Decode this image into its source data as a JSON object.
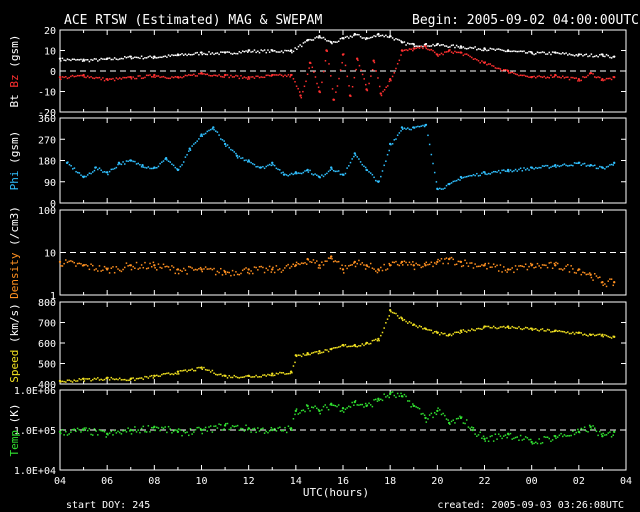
{
  "header": {
    "title": "ACE RTSW (Estimated) MAG & SWEPAM",
    "begin": "Begin: 2005-09-02 04:00:00UTC"
  },
  "footer": {
    "start_doy": "start DOY: 245",
    "created": "created: 2005-09-03 03:26:08UTC"
  },
  "x_axis": {
    "label": "UTC(hours)",
    "range_hours": [
      4,
      28
    ],
    "ticks": [
      "04",
      "06",
      "08",
      "10",
      "12",
      "14",
      "16",
      "18",
      "20",
      "22",
      "00",
      "02",
      "04"
    ]
  },
  "chart_data": [
    {
      "type": "scatter",
      "panel": "mag",
      "ylabel_parts": [
        "Bt",
        "Bz",
        "(gsm)"
      ],
      "ylabel_colors": [
        "#ffffff",
        "#ff3030",
        "#ffffff"
      ],
      "ylim": [
        -20,
        20
      ],
      "yticks": [
        "20",
        "10",
        "0",
        "-10",
        "-20"
      ],
      "ytick_values": [
        20,
        10,
        0,
        -10,
        -20
      ],
      "dashed_ref": 0,
      "series": [
        {
          "name": "Bt",
          "color": "#ffffff",
          "x": [
            4,
            5,
            6,
            7,
            8,
            9,
            10,
            11,
            12,
            13,
            13.8,
            14.5,
            15,
            15.5,
            16,
            16.5,
            17,
            17.5,
            18,
            18.5,
            19,
            19.5,
            20,
            21,
            22,
            23,
            24,
            25,
            26,
            27,
            27.5
          ],
          "y": [
            6,
            5.5,
            6,
            7,
            7,
            8,
            9,
            9,
            10,
            10,
            10,
            15,
            17,
            14,
            16,
            18,
            16,
            18,
            17,
            14,
            13,
            13,
            13,
            12,
            11,
            10,
            9,
            9,
            8,
            8,
            7
          ]
        },
        {
          "name": "Bz",
          "color": "#ff3030",
          "x": [
            4,
            5,
            6,
            7,
            8,
            9,
            10,
            11,
            12,
            13,
            13.8,
            14.2,
            14.6,
            15,
            15.3,
            15.6,
            16,
            16.3,
            16.6,
            17,
            17.3,
            17.6,
            18,
            18.5,
            19,
            19.5,
            20,
            20.5,
            21,
            22,
            23,
            24,
            25,
            26,
            26.5,
            27,
            27.5
          ],
          "y": [
            -3,
            -2,
            -4,
            -3,
            -2,
            -3,
            -1,
            -2,
            -3,
            -2,
            -2,
            -12,
            4,
            -10,
            10,
            -14,
            8,
            -12,
            6,
            -9,
            5,
            -11,
            -4,
            10,
            11,
            12,
            8,
            10,
            9,
            4,
            0,
            -3,
            -2,
            -4,
            -1,
            -4,
            -3
          ]
        }
      ]
    },
    {
      "type": "scatter",
      "panel": "phi",
      "ylabel_parts": [
        "Phi",
        "(gsm)"
      ],
      "ylabel_colors": [
        "#30c0ff",
        "#ffffff"
      ],
      "ylim": [
        0,
        360
      ],
      "yticks": [
        "360",
        "270",
        "180",
        "90",
        "0"
      ],
      "ytick_values": [
        360,
        270,
        180,
        90,
        0
      ],
      "series": [
        {
          "name": "Phi",
          "color": "#30c0ff",
          "x": [
            4.3,
            5,
            5.5,
            6,
            6.5,
            7,
            7.5,
            8,
            8.5,
            9,
            9.5,
            10,
            10.5,
            11,
            11.5,
            12,
            12.5,
            13,
            13.5,
            14,
            14.5,
            15,
            15.5,
            16,
            16.5,
            17,
            17.5,
            18,
            18.5,
            19,
            19.5,
            20,
            20.5,
            21,
            22,
            23,
            24,
            25,
            26,
            26.5,
            27,
            27.5
          ],
          "y": [
            170,
            110,
            150,
            130,
            170,
            180,
            160,
            150,
            190,
            140,
            230,
            290,
            320,
            250,
            200,
            180,
            150,
            170,
            120,
            130,
            140,
            110,
            150,
            120,
            210,
            140,
            90,
            250,
            320,
            320,
            330,
            60,
            80,
            110,
            130,
            140,
            150,
            160,
            170,
            160,
            150,
            170
          ]
        }
      ]
    },
    {
      "type": "scatter",
      "panel": "density",
      "scale": "log",
      "ylabel_parts": [
        "Density",
        "(/cm3)"
      ],
      "ylabel_colors": [
        "#ff9020",
        "#ffffff"
      ],
      "ylim": [
        1,
        100
      ],
      "yticks": [
        "100",
        "10",
        "1"
      ],
      "ytick_values": [
        100,
        10,
        1
      ],
      "dashed_ref": 10,
      "series": [
        {
          "name": "Density",
          "color": "#ff9020",
          "x": [
            4,
            5,
            6,
            7,
            8,
            9,
            10,
            11,
            12,
            13,
            14,
            14.5,
            15,
            15.5,
            16,
            16.5,
            17,
            17.5,
            18,
            18.5,
            19,
            19.5,
            20,
            20.5,
            21,
            22,
            23,
            24,
            25,
            26,
            26.5,
            27,
            27.5
          ],
          "y": [
            6,
            5,
            4,
            5,
            5,
            4,
            4,
            3.5,
            4,
            4,
            5,
            7,
            5,
            8,
            4,
            6,
            5,
            4,
            5,
            6,
            5,
            5,
            6,
            7,
            6,
            5,
            4,
            5,
            5,
            4,
            3,
            2,
            2
          ]
        }
      ]
    },
    {
      "type": "scatter",
      "panel": "speed",
      "ylabel_parts": [
        "Speed",
        "(km/s)"
      ],
      "ylabel_colors": [
        "#f0e020",
        "#ffffff"
      ],
      "ylim": [
        400,
        800
      ],
      "yticks": [
        "800",
        "700",
        "600",
        "500",
        "400"
      ],
      "ytick_values": [
        800,
        700,
        600,
        500,
        400
      ],
      "series": [
        {
          "name": "Speed",
          "color": "#f0e020",
          "x": [
            4,
            5,
            6,
            7,
            8,
            9,
            10,
            11,
            12,
            13,
            13.8,
            14,
            14.5,
            15,
            15.5,
            16,
            16.5,
            17,
            17.5,
            18,
            18.5,
            19,
            19.5,
            20,
            20.5,
            21,
            22,
            23,
            24,
            25,
            26,
            26.5,
            27,
            27.5
          ],
          "y": [
            415,
            425,
            430,
            425,
            440,
            460,
            480,
            440,
            440,
            450,
            460,
            540,
            550,
            560,
            570,
            590,
            590,
            600,
            620,
            760,
            720,
            690,
            670,
            650,
            640,
            660,
            680,
            680,
            670,
            660,
            650,
            640,
            640,
            630
          ]
        }
      ]
    },
    {
      "type": "scatter",
      "panel": "temp",
      "scale": "log",
      "ylabel_parts": [
        "Temp",
        "(K)"
      ],
      "ylabel_colors": [
        "#30e030",
        "#ffffff"
      ],
      "ylim": [
        10000,
        1000000
      ],
      "yticks": [
        "1.0E+06",
        "1.0E+05",
        "1.0E+04"
      ],
      "ytick_values": [
        1000000,
        100000,
        10000
      ],
      "dashed_ref": 100000,
      "series": [
        {
          "name": "Temp",
          "color": "#30e030",
          "x": [
            4,
            5,
            6,
            7,
            8,
            9,
            10,
            11,
            12,
            13,
            13.8,
            14,
            14.5,
            15,
            15.5,
            16,
            16.5,
            17,
            17.5,
            18,
            18.5,
            19,
            19.5,
            20,
            20.5,
            21,
            21.5,
            22,
            23,
            24,
            25,
            26,
            26.5,
            27,
            27.5
          ],
          "y": [
            90000,
            100000,
            80000,
            100000,
            120000,
            90000,
            100000,
            130000,
            110000,
            100000,
            110000,
            300000,
            400000,
            300000,
            450000,
            350000,
            500000,
            400000,
            600000,
            800000,
            700000,
            400000,
            200000,
            300000,
            150000,
            200000,
            100000,
            60000,
            80000,
            50000,
            70000,
            90000,
            120000,
            70000,
            90000
          ]
        }
      ]
    }
  ]
}
